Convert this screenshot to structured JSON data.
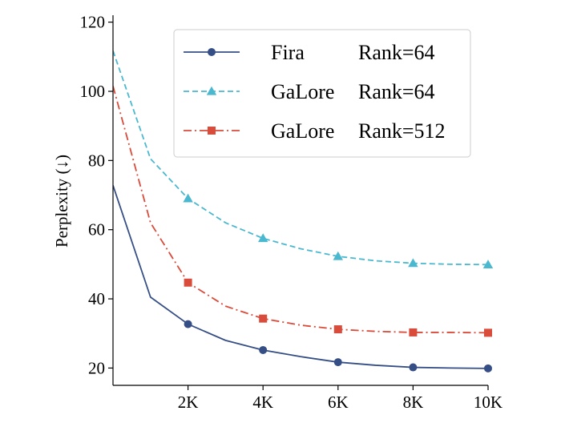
{
  "chart_data": {
    "type": "line",
    "xlabel": "",
    "ylabel": "Perplexity (↓)",
    "xlim": [
      0,
      10000
    ],
    "ylim": [
      15,
      122
    ],
    "x_ticks": [
      2000,
      4000,
      6000,
      8000,
      10000
    ],
    "x_tick_labels": [
      "2K",
      "4K",
      "6K",
      "8K",
      "10K"
    ],
    "y_ticks": [
      20,
      40,
      60,
      80,
      100,
      120
    ],
    "y_tick_labels": [
      "20",
      "40",
      "60",
      "80",
      "100",
      "120"
    ],
    "legend": {
      "placement": "top-right"
    },
    "series": [
      {
        "name": "Fira",
        "rank": "Rank=64",
        "color": "#354f86",
        "dash": "solid",
        "marker": "circle",
        "x": [
          0,
          1000,
          2000,
          3000,
          4000,
          5000,
          6000,
          7000,
          8000,
          9000,
          10000
        ],
        "values": [
          72.8,
          40.5,
          32.7,
          28.0,
          25.2,
          23.3,
          21.7,
          20.8,
          20.2,
          20.0,
          19.9
        ],
        "marker_every": [
          2,
          4,
          6,
          8,
          10
        ]
      },
      {
        "name": "GaLore",
        "rank": "Rank=64",
        "color": "#4ab8cf",
        "dash": "dashed",
        "marker": "triangle",
        "x": [
          0,
          1000,
          2000,
          3000,
          4000,
          5000,
          6000,
          7000,
          8000,
          9000,
          10000
        ],
        "values": [
          111.7,
          80.5,
          69.0,
          62.0,
          57.5,
          54.5,
          52.3,
          51.0,
          50.3,
          50.0,
          49.9
        ],
        "marker_every": [
          2,
          4,
          6,
          8,
          10
        ]
      },
      {
        "name": "GaLore",
        "rank": "Rank=512",
        "color": "#d94b3a",
        "dash": "dashdot",
        "marker": "square",
        "x": [
          0,
          1000,
          2000,
          3000,
          4000,
          5000,
          6000,
          7000,
          8000,
          9000,
          10000
        ],
        "values": [
          101.5,
          62.0,
          44.7,
          37.9,
          34.3,
          32.4,
          31.2,
          30.6,
          30.3,
          30.3,
          30.2
        ],
        "marker_every": [
          2,
          4,
          6,
          8,
          10
        ]
      }
    ]
  }
}
